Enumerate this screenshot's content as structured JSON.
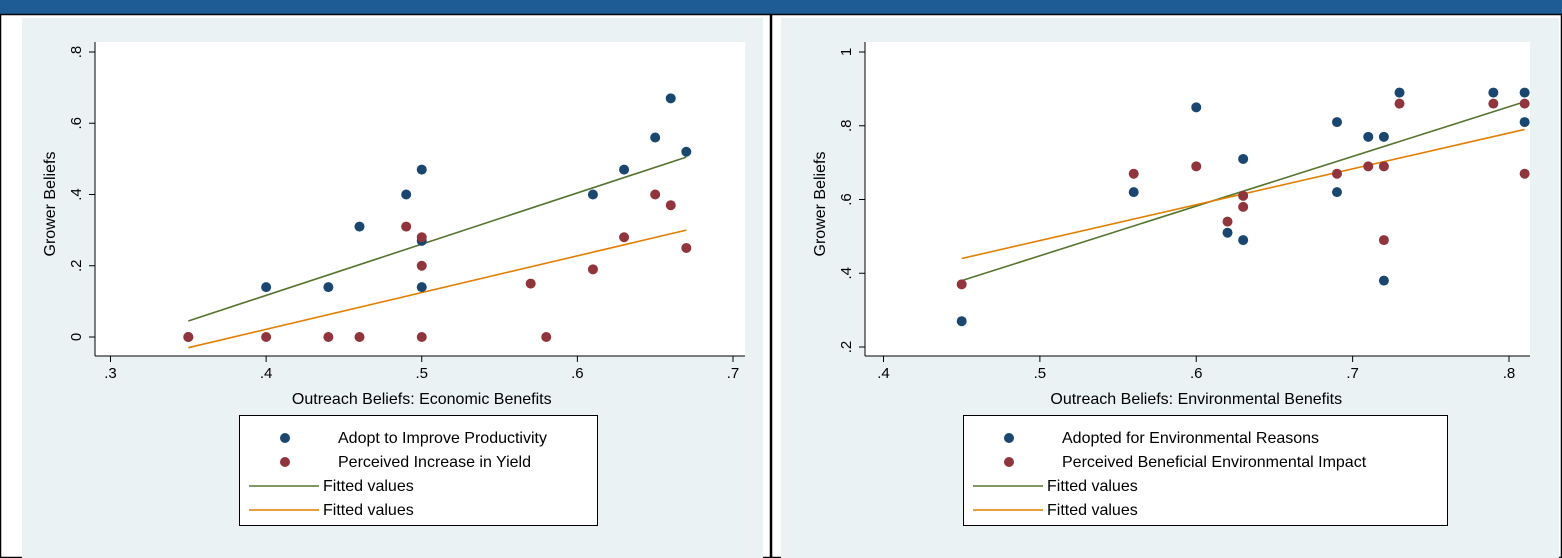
{
  "chart_data": [
    {
      "type": "scatter",
      "xlabel": "Outreach Beliefs: Economic Benefits",
      "ylabel": "Grower Beliefs",
      "xlim": [
        0.3,
        0.7
      ],
      "ylim": [
        0,
        0.8
      ],
      "xticks": [
        ".3",
        ".4",
        ".5",
        ".6",
        ".7"
      ],
      "yticks": [
        "0",
        ".2",
        ".4",
        ".6",
        ".8"
      ],
      "grid": false,
      "legend_position": "bottom",
      "series": [
        {
          "name": "Adopt to Improve Productivity",
          "kind": "scatter",
          "color": "#1a476f",
          "x": [
            0.35,
            0.4,
            0.44,
            0.46,
            0.49,
            0.5,
            0.5,
            0.5,
            0.61,
            0.63,
            0.65,
            0.66,
            0.67
          ],
          "y": [
            0.0,
            0.14,
            0.14,
            0.31,
            0.4,
            0.47,
            0.27,
            0.14,
            0.4,
            0.47,
            0.56,
            0.67,
            0.52
          ]
        },
        {
          "name": "Perceived Increase in Yield",
          "kind": "scatter",
          "color": "#90353b",
          "x": [
            0.35,
            0.4,
            0.44,
            0.46,
            0.49,
            0.5,
            0.5,
            0.5,
            0.57,
            0.58,
            0.61,
            0.63,
            0.65,
            0.66,
            0.67
          ],
          "y": [
            0.0,
            0.0,
            0.0,
            0.0,
            0.31,
            0.28,
            0.2,
            0.0,
            0.15,
            0.0,
            0.19,
            0.28,
            0.4,
            0.37,
            0.25
          ]
        },
        {
          "name": "Fitted values",
          "kind": "line",
          "color": "#55752f",
          "x": [
            0.35,
            0.67
          ],
          "y": [
            0.045,
            0.505
          ]
        },
        {
          "name": "Fitted values",
          "kind": "line",
          "color": "#e37e00",
          "x": [
            0.35,
            0.67
          ],
          "y": [
            -0.03,
            0.3
          ]
        }
      ]
    },
    {
      "type": "scatter",
      "xlabel": "Outreach Beliefs: Environmental Benefits",
      "ylabel": "Grower Beliefs",
      "xlim": [
        0.4,
        0.81
      ],
      "ylim": [
        0.2,
        1.0
      ],
      "xticks": [
        ".4",
        ".5",
        ".6",
        ".7",
        ".8"
      ],
      "yticks": [
        ".2",
        ".4",
        ".6",
        ".8",
        "1"
      ],
      "grid": false,
      "legend_position": "bottom",
      "series": [
        {
          "name": "Adopted for Environmental Reasons",
          "kind": "scatter",
          "color": "#1a476f",
          "x": [
            0.45,
            0.56,
            0.6,
            0.62,
            0.63,
            0.63,
            0.69,
            0.69,
            0.71,
            0.72,
            0.72,
            0.73,
            0.79,
            0.81,
            0.81
          ],
          "y": [
            0.27,
            0.62,
            0.85,
            0.51,
            0.49,
            0.71,
            0.81,
            0.62,
            0.77,
            0.77,
            0.38,
            0.89,
            0.89,
            0.89,
            0.81
          ]
        },
        {
          "name": "Perceived Beneficial Environmental Impact",
          "kind": "scatter",
          "color": "#90353b",
          "x": [
            0.45,
            0.56,
            0.6,
            0.62,
            0.63,
            0.63,
            0.69,
            0.71,
            0.72,
            0.72,
            0.73,
            0.79,
            0.81,
            0.81
          ],
          "y": [
            0.37,
            0.67,
            0.69,
            0.54,
            0.58,
            0.61,
            0.67,
            0.69,
            0.69,
            0.49,
            0.86,
            0.86,
            0.86,
            0.67
          ]
        },
        {
          "name": "Fitted values",
          "kind": "line",
          "color": "#55752f",
          "x": [
            0.45,
            0.81
          ],
          "y": [
            0.38,
            0.865
          ]
        },
        {
          "name": "Fitted values",
          "kind": "line",
          "color": "#e37e00",
          "x": [
            0.45,
            0.81
          ],
          "y": [
            0.44,
            0.79
          ]
        }
      ]
    }
  ]
}
